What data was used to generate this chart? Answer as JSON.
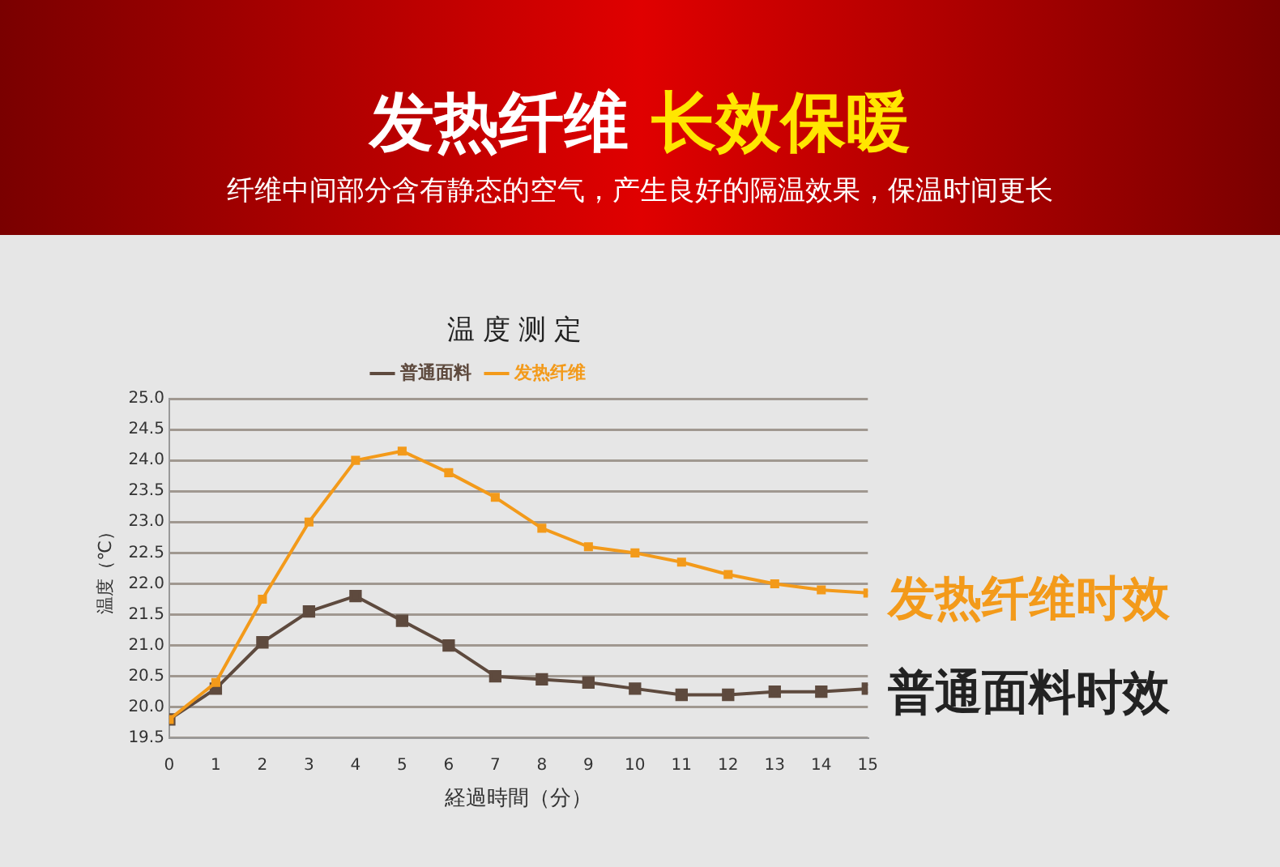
{
  "chart_data": {
    "type": "line",
    "title": "发热纤维 长效保暖",
    "subtitle": "纤维中间部分含有静态的空气，产生良好的隔温效果，保温时间更长",
    "annotations": [
      "温度测定",
      "发热纤维时效",
      "普通面料时效"
    ],
    "xlabel": "経過時間（分）",
    "ylabel": "温度（℃）",
    "x": [
      0,
      1,
      2,
      3,
      4,
      5,
      6,
      7,
      8,
      9,
      10,
      11,
      12,
      13,
      14,
      15
    ],
    "series": [
      {
        "name": "普通面料",
        "color": "#5e4a3e",
        "values": [
          19.8,
          20.3,
          21.05,
          21.55,
          21.8,
          21.4,
          21.0,
          20.5,
          20.45,
          20.4,
          20.3,
          20.2,
          20.2,
          20.25,
          20.25,
          20.3
        ]
      },
      {
        "name": "发热纤维",
        "color": "#f39a1a",
        "values": [
          19.8,
          20.4,
          21.75,
          23.0,
          24.0,
          24.15,
          23.8,
          23.4,
          22.9,
          22.6,
          22.5,
          22.35,
          22.15,
          22.0,
          21.9,
          21.85
        ]
      }
    ],
    "xlim": [
      0,
      15
    ],
    "xticks": [
      0,
      1,
      2,
      3,
      4,
      5,
      6,
      7,
      8,
      9,
      10,
      11,
      12,
      13,
      14,
      15
    ],
    "ylim": [
      19.5,
      25
    ],
    "yticks": [
      19.5,
      {
        "value": 20,
        "label": "20.0"
      },
      20.5,
      {
        "value": 21,
        "label": "21.0"
      },
      21.5,
      {
        "value": 22,
        "label": "22.0"
      },
      22.5,
      {
        "value": 23,
        "label": "23.0"
      },
      23.5,
      {
        "value": 24,
        "label": "24.0"
      },
      24.5,
      {
        "value": 25,
        "label": "25.0"
      }
    ],
    "grid": "y",
    "legend": "top",
    "marker": "square",
    "line_style": "solid"
  }
}
